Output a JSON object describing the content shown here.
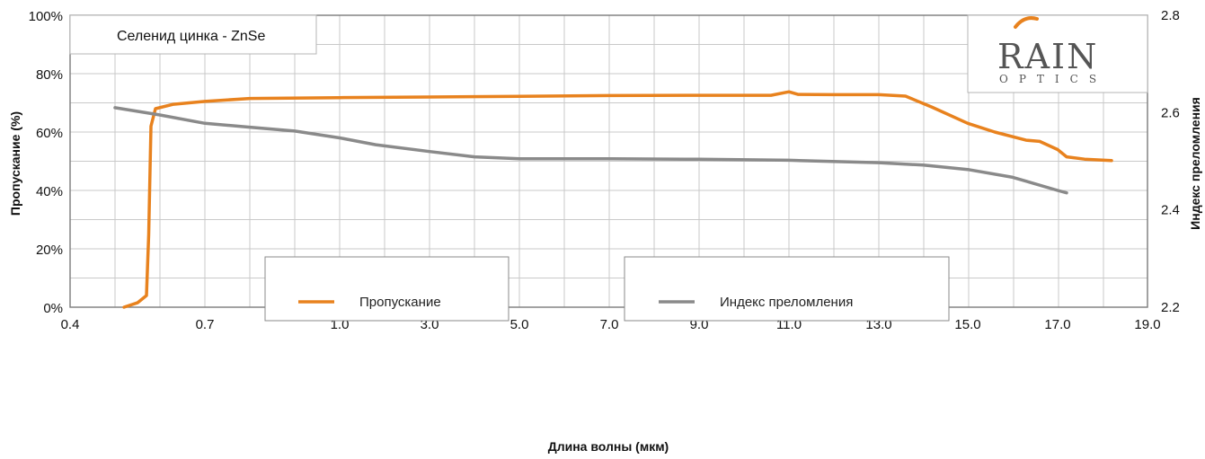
{
  "chart_data": {
    "type": "line",
    "title": "Селенид цинка - ZnSe",
    "xlabel": "Длина волны (мкм)",
    "ylabel": "Пропускание (%)",
    "y2label": "Индекс преломления",
    "x_ticks": [
      "0.4",
      "0.7",
      "1.0",
      "3.0",
      "5.0",
      "7.0",
      "9.0",
      "11.0",
      "13.0",
      "15.0",
      "17.0",
      "19.0"
    ],
    "y_ticks": [
      "0%",
      "20%",
      "40%",
      "60%",
      "80%",
      "100%"
    ],
    "y2_ticks": [
      "2.2",
      "2.4",
      "2.6",
      "2.8"
    ],
    "ylim": [
      0,
      100
    ],
    "y2lim": [
      2.2,
      2.8
    ],
    "grid": true,
    "x_scale": "piecewise-linear",
    "series": [
      {
        "name": "Пропускание",
        "axis": "left",
        "color": "#e8821e",
        "points": [
          [
            0.52,
            0
          ],
          [
            0.55,
            1.5
          ],
          [
            0.57,
            4
          ],
          [
            0.575,
            25
          ],
          [
            0.58,
            62
          ],
          [
            0.59,
            68
          ],
          [
            0.63,
            69.5
          ],
          [
            0.7,
            70.5
          ],
          [
            0.8,
            71.5
          ],
          [
            1.0,
            71.8
          ],
          [
            3.0,
            72
          ],
          [
            5.0,
            72.2
          ],
          [
            7.0,
            72.5
          ],
          [
            9.0,
            72.6
          ],
          [
            10.6,
            72.6
          ],
          [
            11.0,
            73.8
          ],
          [
            11.2,
            72.9
          ],
          [
            12.0,
            72.8
          ],
          [
            13.0,
            72.8
          ],
          [
            13.6,
            72.3
          ],
          [
            14.2,
            68.5
          ],
          [
            15.0,
            63
          ],
          [
            15.6,
            60
          ],
          [
            16.3,
            57.2
          ],
          [
            16.6,
            56.8
          ],
          [
            17.0,
            54
          ],
          [
            17.2,
            51.5
          ],
          [
            17.6,
            50.7
          ],
          [
            18.2,
            50.2
          ]
        ]
      },
      {
        "name": "Индекс преломления",
        "axis": "right",
        "color": "#8a8a8a",
        "points": [
          [
            0.5,
            2.61
          ],
          [
            0.6,
            2.595
          ],
          [
            0.7,
            2.578
          ],
          [
            0.8,
            2.57
          ],
          [
            0.9,
            2.562
          ],
          [
            1.0,
            2.548
          ],
          [
            1.8,
            2.534
          ],
          [
            3.0,
            2.52
          ],
          [
            4.0,
            2.509
          ],
          [
            5.0,
            2.505
          ],
          [
            7.0,
            2.505
          ],
          [
            9.0,
            2.504
          ],
          [
            11.0,
            2.502
          ],
          [
            13.0,
            2.497
          ],
          [
            14.0,
            2.492
          ],
          [
            15.0,
            2.483
          ],
          [
            16.0,
            2.467
          ],
          [
            17.0,
            2.44
          ],
          [
            17.2,
            2.435
          ]
        ]
      }
    ]
  },
  "legend": {
    "items": [
      {
        "label": "Пропускание",
        "color": "#e8821e"
      },
      {
        "label": "Индекс преломления",
        "color": "#8a8a8a"
      }
    ]
  },
  "logo": {
    "main": "RAIN",
    "sub": "OPTICS",
    "accent_color": "#e8821e"
  }
}
